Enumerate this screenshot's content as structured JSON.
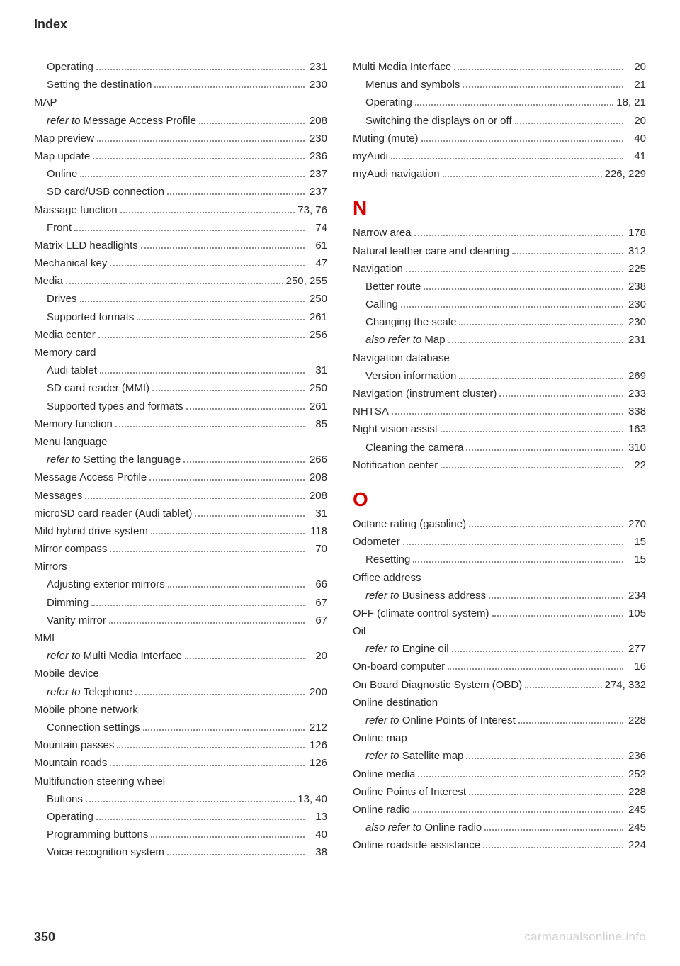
{
  "header": "Index",
  "pageNumber": "350",
  "watermark": "carmanualsonline.info",
  "sectionLetters": {
    "N": "N",
    "O": "O"
  },
  "left": [
    {
      "label": "Operating",
      "page": "231",
      "sub": true
    },
    {
      "label": "Setting the destination",
      "page": "230",
      "sub": true
    },
    {
      "label": "MAP",
      "heading": true
    },
    {
      "prefix": "refer to ",
      "label": "Message Access Profile",
      "page": "208",
      "sub": true,
      "italicPrefix": true
    },
    {
      "label": "Map preview",
      "page": "230"
    },
    {
      "label": "Map update",
      "page": "236"
    },
    {
      "label": "Online",
      "page": "237",
      "sub": true
    },
    {
      "label": "SD card/USB connection",
      "page": "237",
      "sub": true
    },
    {
      "label": "Massage function",
      "page": "73, 76"
    },
    {
      "label": "Front",
      "page": "74",
      "sub": true
    },
    {
      "label": "Matrix LED headlights",
      "page": "61"
    },
    {
      "label": "Mechanical key",
      "page": "47"
    },
    {
      "label": "Media",
      "page": "250, 255"
    },
    {
      "label": "Drives",
      "page": "250",
      "sub": true
    },
    {
      "label": "Supported formats",
      "page": "261",
      "sub": true
    },
    {
      "label": "Media center",
      "page": "256"
    },
    {
      "label": "Memory card",
      "heading": true
    },
    {
      "label": "Audi tablet",
      "page": "31",
      "sub": true
    },
    {
      "label": "SD card reader (MMI)",
      "page": "250",
      "sub": true
    },
    {
      "label": "Supported types and formats",
      "page": "261",
      "sub": true
    },
    {
      "label": "Memory function",
      "page": "85"
    },
    {
      "label": "Menu language",
      "heading": true
    },
    {
      "prefix": "refer to ",
      "label": "Setting the language",
      "page": "266",
      "sub": true,
      "italicPrefix": true
    },
    {
      "label": "Message Access Profile",
      "page": "208"
    },
    {
      "label": "Messages",
      "page": "208"
    },
    {
      "label": "microSD card reader (Audi tablet)",
      "page": "31"
    },
    {
      "label": "Mild hybrid drive system",
      "page": "118"
    },
    {
      "label": "Mirror compass",
      "page": "70"
    },
    {
      "label": "Mirrors",
      "heading": true
    },
    {
      "label": "Adjusting exterior mirrors",
      "page": "66",
      "sub": true
    },
    {
      "label": "Dimming",
      "page": "67",
      "sub": true
    },
    {
      "label": "Vanity mirror",
      "page": "67",
      "sub": true
    },
    {
      "label": "MMI",
      "heading": true
    },
    {
      "prefix": "refer to ",
      "label": "Multi Media Interface",
      "page": "20",
      "sub": true,
      "italicPrefix": true
    },
    {
      "label": "Mobile device",
      "heading": true
    },
    {
      "prefix": "refer to ",
      "label": "Telephone",
      "page": "200",
      "sub": true,
      "italicPrefix": true
    },
    {
      "label": "Mobile phone network",
      "heading": true
    },
    {
      "label": "Connection settings",
      "page": "212",
      "sub": true
    },
    {
      "label": "Mountain passes",
      "page": "126"
    },
    {
      "label": "Mountain roads",
      "page": "126"
    },
    {
      "label": "Multifunction steering wheel",
      "heading": true
    },
    {
      "label": "Buttons",
      "page": "13, 40",
      "sub": true
    },
    {
      "label": "Operating",
      "page": "13",
      "sub": true
    },
    {
      "label": "Programming buttons",
      "page": "40",
      "sub": true
    },
    {
      "label": "Voice recognition system",
      "page": "38",
      "sub": true
    }
  ],
  "right": [
    {
      "label": "Multi Media Interface",
      "page": "20"
    },
    {
      "label": "Menus and symbols",
      "page": "21",
      "sub": true
    },
    {
      "label": "Operating",
      "page": "18, 21",
      "sub": true
    },
    {
      "label": "Switching the displays on or off",
      "page": "20",
      "sub": true
    },
    {
      "label": "Muting (mute)",
      "page": "40"
    },
    {
      "label": "myAudi",
      "page": "41"
    },
    {
      "label": "myAudi navigation",
      "page": "226, 229"
    },
    {
      "letter": "N"
    },
    {
      "label": "Narrow area",
      "page": "178"
    },
    {
      "label": "Natural leather care and cleaning",
      "page": "312"
    },
    {
      "label": "Navigation",
      "page": "225"
    },
    {
      "label": "Better route",
      "page": "238",
      "sub": true
    },
    {
      "label": "Calling",
      "page": "230",
      "sub": true
    },
    {
      "label": "Changing the scale",
      "page": "230",
      "sub": true
    },
    {
      "prefix": "also refer to ",
      "label": "Map",
      "page": "231",
      "sub": true,
      "italicPrefix": true
    },
    {
      "label": "Navigation database",
      "heading": true
    },
    {
      "label": "Version information",
      "page": "269",
      "sub": true
    },
    {
      "label": "Navigation (instrument cluster)",
      "page": "233"
    },
    {
      "label": "NHTSA",
      "page": "338"
    },
    {
      "label": "Night vision assist",
      "page": "163"
    },
    {
      "label": "Cleaning the camera",
      "page": "310",
      "sub": true
    },
    {
      "label": "Notification center",
      "page": "22"
    },
    {
      "letter": "O"
    },
    {
      "label": "Octane rating (gasoline)",
      "page": "270"
    },
    {
      "label": "Odometer",
      "page": "15"
    },
    {
      "label": "Resetting",
      "page": "15",
      "sub": true
    },
    {
      "label": "Office address",
      "heading": true
    },
    {
      "prefix": "refer to ",
      "label": "Business address",
      "page": "234",
      "sub": true,
      "italicPrefix": true
    },
    {
      "label": "OFF (climate control system)",
      "page": "105"
    },
    {
      "label": "Oil",
      "heading": true
    },
    {
      "prefix": "refer to ",
      "label": "Engine oil",
      "page": "277",
      "sub": true,
      "italicPrefix": true
    },
    {
      "label": "On-board computer",
      "page": "16"
    },
    {
      "label": "On Board Diagnostic System (OBD)",
      "page": "274, 332"
    },
    {
      "label": "Online destination",
      "heading": true
    },
    {
      "prefix": "refer to ",
      "label": "Online Points of Interest",
      "page": "228",
      "sub": true,
      "italicPrefix": true
    },
    {
      "label": "Online map",
      "heading": true
    },
    {
      "prefix": "refer to ",
      "label": "Satellite map",
      "page": "236",
      "sub": true,
      "italicPrefix": true
    },
    {
      "label": "Online media",
      "page": "252"
    },
    {
      "label": "Online Points of Interest",
      "page": "228"
    },
    {
      "label": "Online radio",
      "page": "245"
    },
    {
      "prefix": "also refer to ",
      "label": "Online radio",
      "page": "245",
      "sub": true,
      "italicPrefix": true
    },
    {
      "label": "Online roadside assistance",
      "page": "224"
    }
  ]
}
